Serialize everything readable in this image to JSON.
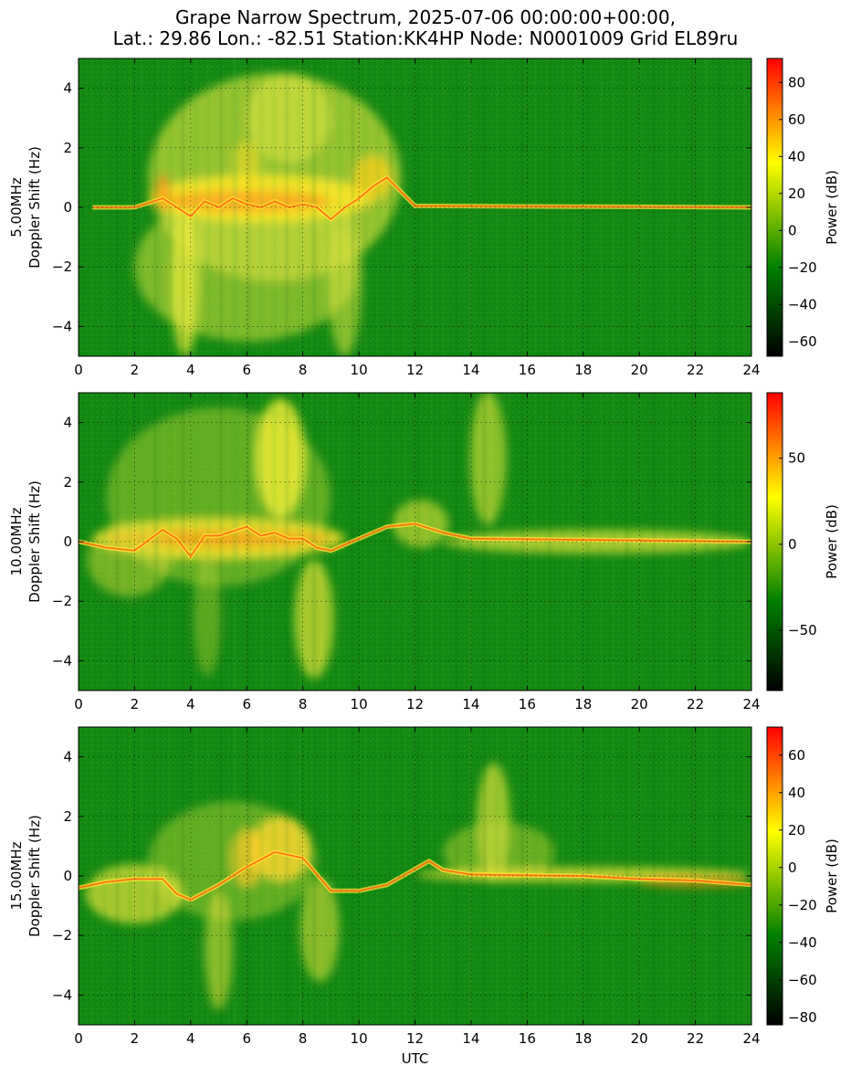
{
  "title_line1": "Grape Narrow Spectrum, 2025-07-06 00:00:00+00:00,",
  "title_line2": "Lat.: 29.86 Lon.: -82.51 Station:KK4HP Node: N0001009 Grid EL89ru",
  "colors": {
    "colormap": [
      "#000000",
      "#008000",
      "#ffff00",
      "#ff0000"
    ],
    "background_green": "#138a13"
  },
  "chart_data": [
    {
      "type": "heatmap",
      "frequency_label": "5.00MHz",
      "ylabel": "Doppler Shift (Hz)",
      "xlabel": "",
      "xlim": [
        0,
        24
      ],
      "ylim": [
        -5,
        5
      ],
      "x_ticks": [
        0,
        2,
        4,
        6,
        8,
        10,
        12,
        14,
        16,
        18,
        20,
        22,
        24
      ],
      "y_ticks": [
        -4,
        -2,
        0,
        2,
        4
      ],
      "grid": true,
      "colorbar": {
        "label": "Power (dB)",
        "range": [
          -68,
          93
        ],
        "ticks": [
          -60,
          -40,
          -20,
          0,
          20,
          40,
          60,
          80
        ]
      }
    },
    {
      "type": "heatmap",
      "frequency_label": "10.00MHz",
      "ylabel": "Doppler Shift (Hz)",
      "xlabel": "",
      "xlim": [
        0,
        24
      ],
      "ylim": [
        -5,
        5
      ],
      "x_ticks": [
        0,
        2,
        4,
        6,
        8,
        10,
        12,
        14,
        16,
        18,
        20,
        22,
        24
      ],
      "y_ticks": [
        -4,
        -2,
        0,
        2,
        4
      ],
      "grid": true,
      "colorbar": {
        "label": "Power (dB)",
        "range": [
          -85,
          88
        ],
        "ticks": [
          -50,
          0,
          50
        ]
      }
    },
    {
      "type": "heatmap",
      "frequency_label": "15.00MHz",
      "ylabel": "Doppler Shift (Hz)",
      "xlabel": "UTC",
      "xlim": [
        0,
        24
      ],
      "ylim": [
        -5,
        5
      ],
      "x_ticks": [
        0,
        2,
        4,
        6,
        8,
        10,
        12,
        14,
        16,
        18,
        20,
        22,
        24
      ],
      "y_ticks": [
        -4,
        -2,
        0,
        2,
        4
      ],
      "grid": true,
      "colorbar": {
        "label": "Power (dB)",
        "range": [
          -84,
          75
        ],
        "ticks": [
          -80,
          -60,
          -40,
          -20,
          0,
          20,
          40,
          60
        ]
      }
    }
  ]
}
